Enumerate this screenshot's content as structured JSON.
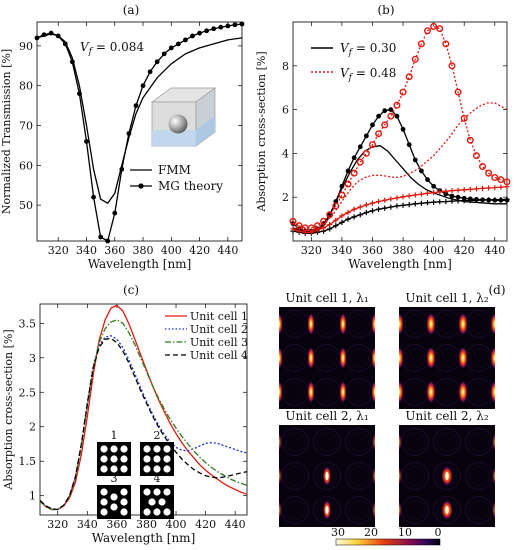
{
  "chart_data": [
    {
      "panel": "(a)",
      "type": "line",
      "xlabel": "Wavelength [nm]",
      "ylabel": "Normalized Transmission [%]",
      "xlim": [
        305,
        450
      ],
      "ylim": [
        41,
        96
      ],
      "xticks": [
        320,
        340,
        360,
        380,
        400,
        420,
        440
      ],
      "yticks": [
        50,
        60,
        70,
        80,
        90
      ],
      "annotation": "V_f = 0.084",
      "legend": "bottom-right",
      "series": [
        {
          "name": "FMM",
          "style": "solid",
          "color": "#000000",
          "x": [
            305,
            310,
            315,
            320,
            325,
            330,
            335,
            340,
            345,
            350,
            355,
            360,
            365,
            370,
            375,
            380,
            390,
            400,
            410,
            420,
            430,
            440,
            450
          ],
          "y": [
            92,
            92.5,
            93,
            92.5,
            91,
            87,
            80,
            70,
            59,
            51.5,
            50.5,
            53,
            60,
            67,
            73,
            77,
            82,
            85.5,
            88,
            89.5,
            90.5,
            91.5,
            92
          ]
        },
        {
          "name": "MG theory",
          "style": "solid-dots",
          "color": "#000000",
          "x": [
            305,
            310,
            315,
            320,
            325,
            330,
            335,
            340,
            345,
            350,
            355,
            360,
            365,
            370,
            375,
            380,
            385,
            390,
            395,
            400,
            405,
            410,
            415,
            420,
            425,
            430,
            435,
            440,
            445,
            450
          ],
          "y": [
            92,
            92.8,
            93.2,
            92.5,
            90.5,
            86,
            78,
            66,
            52,
            42,
            41,
            48,
            59,
            68,
            75,
            80,
            83.5,
            86,
            88,
            89.5,
            90.5,
            91.5,
            92.5,
            93.2,
            93.8,
            94.3,
            94.7,
            95,
            95.3,
            95.5
          ]
        }
      ]
    },
    {
      "panel": "(b)",
      "type": "line",
      "xlabel": "Wavelength [nm]",
      "ylabel": "Absorption cross-section [%]",
      "xlim": [
        308,
        448
      ],
      "ylim": [
        0,
        10
      ],
      "xticks": [
        320,
        340,
        360,
        380,
        400,
        420,
        440
      ],
      "yticks": [
        2,
        4,
        6,
        8
      ],
      "legend": "top-left",
      "legend_entries": [
        {
          "label": "V_f = 0.30",
          "color": "#000000",
          "style": "solid"
        },
        {
          "label": "V_f = 0.48",
          "color": "#e0190f",
          "style": "dotted"
        }
      ],
      "series": [
        {
          "color": "#000000",
          "style": "solid",
          "x": [
            308,
            315,
            320,
            325,
            330,
            335,
            340,
            345,
            350,
            355,
            360,
            365,
            370,
            375,
            380,
            385,
            390,
            395,
            400,
            410,
            420,
            430,
            440,
            448
          ],
          "y": [
            0.6,
            0.45,
            0.4,
            0.5,
            0.9,
            1.6,
            2.4,
            3.1,
            3.7,
            4.1,
            4.3,
            4.35,
            4.1,
            3.7,
            3.3,
            2.9,
            2.6,
            2.35,
            2.2,
            1.95,
            1.8,
            1.75,
            1.7,
            1.7
          ]
        },
        {
          "color": "#000000",
          "style": "solid-dots",
          "x": [
            308,
            312,
            316,
            320,
            324,
            328,
            332,
            336,
            340,
            344,
            348,
            352,
            356,
            360,
            364,
            368,
            372,
            376,
            380,
            384,
            388,
            392,
            396,
            400,
            404,
            408,
            412,
            416,
            420,
            424,
            428,
            432,
            436,
            440,
            444,
            448
          ],
          "y": [
            0.8,
            0.55,
            0.45,
            0.45,
            0.55,
            0.8,
            1.2,
            1.8,
            2.5,
            3.2,
            3.8,
            4.3,
            4.8,
            5.3,
            5.7,
            5.95,
            6.0,
            5.7,
            5.1,
            4.4,
            3.7,
            3.2,
            2.8,
            2.5,
            2.3,
            2.15,
            2.05,
            2.0,
            1.95,
            1.92,
            1.9,
            1.88,
            1.87,
            1.86,
            1.86,
            1.86
          ]
        },
        {
          "color": "#000000",
          "style": "solid-plus",
          "x": [
            308,
            312,
            316,
            320,
            324,
            328,
            332,
            336,
            340,
            344,
            348,
            352,
            356,
            360,
            364,
            368,
            372,
            376,
            380,
            384,
            388,
            392,
            396,
            400,
            404,
            408,
            412,
            416,
            420,
            424,
            428,
            432,
            436,
            440,
            444,
            448
          ],
          "y": [
            0.45,
            0.4,
            0.35,
            0.35,
            0.4,
            0.45,
            0.55,
            0.7,
            0.85,
            1.0,
            1.1,
            1.2,
            1.3,
            1.38,
            1.45,
            1.5,
            1.55,
            1.6,
            1.63,
            1.66,
            1.7,
            1.72,
            1.75,
            1.77,
            1.79,
            1.8,
            1.82,
            1.83,
            1.84,
            1.85,
            1.86,
            1.87,
            1.88,
            1.88,
            1.89,
            1.9
          ]
        },
        {
          "color": "#e0190f",
          "style": "dotted",
          "x": [
            308,
            315,
            320,
            325,
            330,
            335,
            340,
            345,
            350,
            355,
            360,
            365,
            370,
            375,
            380,
            385,
            390,
            395,
            400,
            405,
            410,
            415,
            420,
            425,
            430,
            435,
            440,
            448
          ],
          "y": [
            0.8,
            0.6,
            0.5,
            0.6,
            0.9,
            1.3,
            1.8,
            2.3,
            2.7,
            2.9,
            3.0,
            3.0,
            2.95,
            2.9,
            2.95,
            3.1,
            3.3,
            3.6,
            3.9,
            4.3,
            4.7,
            5.2,
            5.6,
            5.9,
            6.15,
            6.3,
            6.3,
            6.0
          ]
        },
        {
          "color": "#e0190f",
          "style": "dotted-circles",
          "x": [
            308,
            312,
            316,
            320,
            324,
            328,
            332,
            336,
            340,
            344,
            348,
            352,
            356,
            360,
            364,
            368,
            372,
            376,
            380,
            384,
            388,
            392,
            396,
            400,
            404,
            408,
            412,
            416,
            420,
            424,
            428,
            432,
            436,
            440,
            444,
            448
          ],
          "y": [
            0.9,
            0.7,
            0.6,
            0.6,
            0.7,
            0.9,
            1.2,
            1.6,
            2.1,
            2.6,
            3.1,
            3.6,
            4.0,
            4.4,
            4.9,
            5.3,
            5.7,
            6.2,
            6.8,
            7.5,
            8.3,
            9.0,
            9.6,
            9.8,
            9.7,
            9.0,
            8.0,
            6.8,
            5.6,
            4.6,
            3.9,
            3.4,
            3.1,
            2.9,
            2.8,
            2.7
          ]
        },
        {
          "color": "#e0190f",
          "style": "solid-plus",
          "x": [
            308,
            312,
            316,
            320,
            324,
            328,
            332,
            336,
            340,
            344,
            348,
            352,
            356,
            360,
            364,
            368,
            372,
            376,
            380,
            384,
            388,
            392,
            396,
            400,
            404,
            408,
            412,
            416,
            420,
            424,
            428,
            432,
            436,
            440,
            444,
            448
          ],
          "y": [
            0.55,
            0.45,
            0.4,
            0.4,
            0.5,
            0.6,
            0.75,
            0.95,
            1.15,
            1.3,
            1.45,
            1.55,
            1.65,
            1.73,
            1.8,
            1.86,
            1.92,
            1.97,
            2.02,
            2.06,
            2.1,
            2.14,
            2.18,
            2.21,
            2.24,
            2.27,
            2.3,
            2.32,
            2.34,
            2.36,
            2.38,
            2.4,
            2.42,
            2.44,
            2.46,
            2.48
          ]
        }
      ]
    },
    {
      "panel": "(c)",
      "type": "line",
      "xlabel": "Wavelength [nm]",
      "ylabel": "Absorption cross-section [%]",
      "xlim": [
        308,
        448
      ],
      "ylim": [
        0.72,
        3.78
      ],
      "xticks": [
        320,
        340,
        360,
        380,
        400,
        420,
        440
      ],
      "yticks": [
        1,
        1.5,
        2,
        2.5,
        3,
        3.5
      ],
      "ytick_labels": [
        "1",
        "1.5",
        "2",
        "2.5",
        "3",
        "3.5"
      ],
      "legend": "top-right",
      "inset_labels": [
        "1",
        "2",
        "3",
        "4"
      ],
      "series": [
        {
          "name": "Unit cell 1",
          "color": "#e0190f",
          "style": "solid",
          "x": [
            308,
            312,
            316,
            320,
            324,
            328,
            332,
            336,
            340,
            344,
            348,
            352,
            356,
            360,
            364,
            368,
            372,
            376,
            380,
            384,
            388,
            392,
            396,
            400,
            404,
            408,
            412,
            416,
            420,
            424,
            428,
            432,
            436,
            440,
            444,
            448
          ],
          "y": [
            0.92,
            0.84,
            0.8,
            0.8,
            0.85,
            0.97,
            1.2,
            1.6,
            2.15,
            2.75,
            3.25,
            3.55,
            3.72,
            3.76,
            3.68,
            3.5,
            3.28,
            3.05,
            2.82,
            2.6,
            2.4,
            2.22,
            2.05,
            1.9,
            1.77,
            1.65,
            1.55,
            1.45,
            1.37,
            1.3,
            1.24,
            1.18,
            1.13,
            1.09,
            1.05,
            1.02
          ]
        },
        {
          "name": "Unit cell 2",
          "color": "#1f2fd6",
          "style": "dotted",
          "x": [
            308,
            312,
            316,
            320,
            324,
            328,
            332,
            336,
            340,
            344,
            348,
            352,
            356,
            360,
            364,
            368,
            372,
            376,
            380,
            384,
            388,
            392,
            396,
            400,
            404,
            408,
            412,
            416,
            420,
            424,
            428,
            432,
            436,
            440,
            444,
            448
          ],
          "y": [
            0.93,
            0.85,
            0.81,
            0.8,
            0.86,
            1.0,
            1.28,
            1.75,
            2.35,
            2.88,
            3.18,
            3.3,
            3.32,
            3.27,
            3.15,
            2.98,
            2.78,
            2.57,
            2.37,
            2.19,
            2.03,
            1.89,
            1.78,
            1.7,
            1.66,
            1.65,
            1.68,
            1.72,
            1.76,
            1.77,
            1.76,
            1.73,
            1.7,
            1.67,
            1.64,
            1.62
          ]
        },
        {
          "name": "Unit cell 3",
          "color": "#2f7d1a",
          "style": "dash-dot",
          "x": [
            308,
            312,
            316,
            320,
            324,
            328,
            332,
            336,
            340,
            344,
            348,
            352,
            356,
            360,
            364,
            368,
            372,
            376,
            380,
            384,
            388,
            392,
            396,
            400,
            404,
            408,
            412,
            416,
            420,
            424,
            428,
            432,
            436,
            440,
            444,
            448
          ],
          "y": [
            0.92,
            0.84,
            0.8,
            0.8,
            0.86,
            1.0,
            1.27,
            1.72,
            2.3,
            2.85,
            3.22,
            3.42,
            3.52,
            3.55,
            3.5,
            3.37,
            3.2,
            3.0,
            2.8,
            2.6,
            2.42,
            2.26,
            2.11,
            1.98,
            1.86,
            1.75,
            1.65,
            1.56,
            1.48,
            1.41,
            1.35,
            1.3,
            1.25,
            1.21,
            1.18,
            1.15
          ]
        },
        {
          "name": "Unit cell 4",
          "color": "#000000",
          "style": "dashed",
          "x": [
            308,
            312,
            316,
            320,
            324,
            328,
            332,
            336,
            340,
            344,
            348,
            352,
            356,
            360,
            364,
            368,
            372,
            376,
            380,
            384,
            388,
            392,
            396,
            400,
            404,
            408,
            412,
            416,
            420,
            424,
            428,
            432,
            436,
            440,
            444,
            448
          ],
          "y": [
            0.93,
            0.85,
            0.81,
            0.8,
            0.86,
            1.0,
            1.28,
            1.75,
            2.33,
            2.85,
            3.15,
            3.27,
            3.28,
            3.22,
            3.1,
            2.93,
            2.73,
            2.53,
            2.34,
            2.16,
            2.0,
            1.86,
            1.74,
            1.63,
            1.53,
            1.45,
            1.38,
            1.33,
            1.29,
            1.27,
            1.26,
            1.27,
            1.29,
            1.31,
            1.33,
            1.35
          ]
        }
      ]
    },
    {
      "panel": "(d)",
      "type": "heatmap",
      "titles": [
        "Unit cell 1, λ₁",
        "Unit cell 1, λ₂",
        "Unit cell 2, λ₁",
        "Unit cell 2, λ₂"
      ],
      "colorbar_ticks": [
        "30",
        "20",
        "10",
        "0"
      ]
    }
  ]
}
